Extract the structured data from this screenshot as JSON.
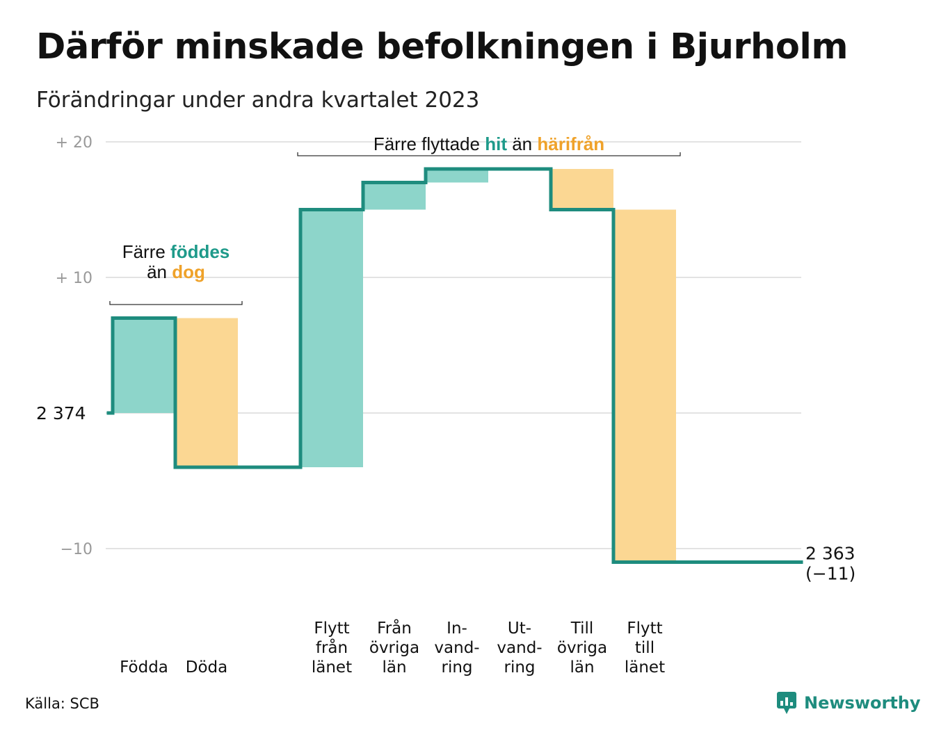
{
  "title": "Därför minskade befolkningen i Bjurholm",
  "subtitle": "Förändringar under andra kvartalet 2023",
  "source": "Källa: SCB",
  "brand": "Newsworthy",
  "colors": {
    "increase": "#8dd5ca",
    "decrease": "#fbd793",
    "line": "#1e8c7e",
    "grid": "#e3e3e3"
  },
  "chart_data": {
    "type": "waterfall",
    "start": {
      "value": 2374,
      "label": "2 374"
    },
    "end": {
      "value": 2363,
      "label": "2 363",
      "change_label": "(−11)"
    },
    "y_ticks": [
      {
        "value": 20,
        "label": "+  20"
      },
      {
        "value": 10,
        "label": "+  10"
      },
      {
        "value": 0,
        "label": ""
      },
      {
        "value": -10,
        "label": "−10"
      }
    ],
    "ylim": [
      -15,
      20
    ],
    "categories": [
      {
        "id": "fodda",
        "lines": [
          "Födda"
        ],
        "change": 7,
        "kind": "increase"
      },
      {
        "id": "doda",
        "lines": [
          "Döda"
        ],
        "change": -11,
        "kind": "decrease"
      },
      {
        "id": "gap",
        "lines": [],
        "change": 0,
        "kind": "none"
      },
      {
        "id": "flytt-fran-lanet",
        "lines": [
          "Flytt",
          "från",
          "länet"
        ],
        "change": 19,
        "kind": "increase"
      },
      {
        "id": "fran-ovriga-lan",
        "lines": [
          "Från",
          "övriga",
          "län"
        ],
        "change": 2,
        "kind": "increase"
      },
      {
        "id": "invandring",
        "lines": [
          "In-",
          "vand-",
          "ring"
        ],
        "change": 1,
        "kind": "increase"
      },
      {
        "id": "utvandring",
        "lines": [
          "Ut-",
          "vand-",
          "ring"
        ],
        "change": 0,
        "kind": "none"
      },
      {
        "id": "till-ovriga-lan",
        "lines": [
          "Till",
          "övriga",
          "län"
        ],
        "change": -3,
        "kind": "decrease"
      },
      {
        "id": "flytt-till-lanet",
        "lines": [
          "Flytt",
          "till",
          "länet"
        ],
        "change": -26,
        "kind": "decrease"
      }
    ],
    "annotations": [
      {
        "id": "births-deaths",
        "lines": [
          [
            {
              "text": "Färre ",
              "style": ""
            },
            {
              "text": "föddes",
              "style": "teal"
            }
          ],
          [
            {
              "text": "än ",
              "style": ""
            },
            {
              "text": "dog",
              "style": "orange"
            }
          ]
        ],
        "from_category": 0,
        "to_category": 1
      },
      {
        "id": "migration",
        "lines": [
          [
            {
              "text": "Färre flyttade ",
              "style": ""
            },
            {
              "text": "hit",
              "style": "teal"
            },
            {
              "text": " än ",
              "style": ""
            },
            {
              "text": "härifrån",
              "style": "orange"
            }
          ]
        ],
        "from_category": 3,
        "to_category": 8
      }
    ]
  }
}
